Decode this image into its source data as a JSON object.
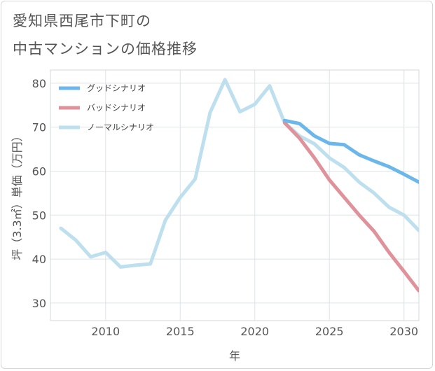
{
  "title_line1": "愛知県西尾市下町の",
  "title_line2": "中古マンションの価格推移",
  "chart_data": {
    "type": "line",
    "xlabel": "年",
    "ylabel": "坪（3.3㎡）単価（万円）",
    "xlim": [
      2006.3,
      2031
    ],
    "ylim": [
      26,
      83
    ],
    "x_ticks": [
      2010,
      2015,
      2020,
      2025,
      2030
    ],
    "y_ticks": [
      30,
      40,
      50,
      60,
      70,
      80
    ],
    "grid": true,
    "legend_position": "top-left",
    "series": [
      {
        "name": "グッドシナリオ",
        "color": "#6bb7ec",
        "x": [
          2022,
          2023,
          2024,
          2025,
          2026,
          2027,
          2028,
          2029,
          2030,
          2031
        ],
        "values": [
          71.5,
          70.8,
          68.0,
          66.3,
          66.0,
          63.7,
          62.3,
          61.0,
          59.3,
          57.5
        ]
      },
      {
        "name": "バッドシナリオ",
        "color": "#e0929a",
        "x": [
          2022,
          2023,
          2024,
          2025,
          2026,
          2027,
          2028,
          2029,
          2030,
          2031
        ],
        "values": [
          71.0,
          67.5,
          63.0,
          58.0,
          54.0,
          50.0,
          46.3,
          41.5,
          37.2,
          32.8
        ]
      },
      {
        "name": "ノーマルシナリオ",
        "color": "#bedfee",
        "x": [
          2007,
          2008,
          2009,
          2010,
          2011,
          2012,
          2013,
          2014,
          2015,
          2016,
          2017,
          2018,
          2019,
          2020,
          2021,
          2022,
          2023,
          2024,
          2025,
          2026,
          2027,
          2028,
          2029,
          2030,
          2031
        ],
        "values": [
          47.0,
          44.3,
          40.5,
          41.5,
          38.2,
          38.6,
          38.9,
          48.8,
          54.0,
          58.2,
          73.3,
          80.8,
          73.5,
          75.2,
          79.4,
          71.0,
          68.0,
          66.2,
          63.0,
          60.8,
          57.5,
          55.0,
          51.8,
          50.0,
          46.5
        ]
      }
    ]
  }
}
